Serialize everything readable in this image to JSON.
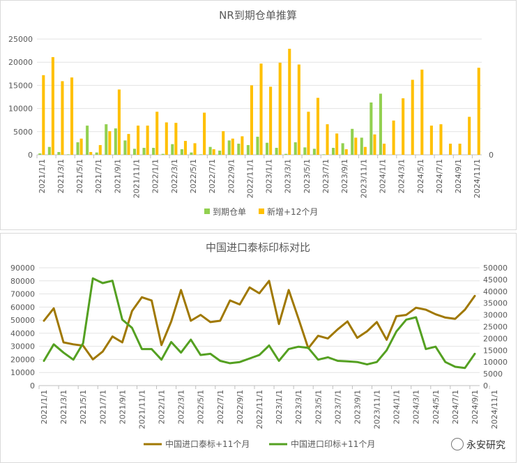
{
  "watermark": "永安研究",
  "chart_data": [
    {
      "type": "bar",
      "title": "NR到期仓单推算",
      "xlabel": "",
      "ylabel": "",
      "ylim": [
        0,
        25000
      ],
      "y_ticks": [
        0,
        5000,
        10000,
        15000,
        20000,
        25000
      ],
      "right_axis_ticks": [
        "0"
      ],
      "grid": true,
      "legend_position": "bottom",
      "x_tick_labels": [
        "2021/1/1",
        "2021/3/1",
        "2021/5/1",
        "2021/7/1",
        "2021/9/1",
        "2021/11/1",
        "2022/1/1",
        "2022/3/1",
        "2022/5/1",
        "2022/7/1",
        "2022/9/1",
        "2022/11/1",
        "2023/1/1",
        "2023/3/1",
        "2023/5/1",
        "2023/7/1",
        "2023/9/1",
        "2023/11/1",
        "2024/1/1",
        "2024/3/1",
        "2024/5/1",
        "2024/7/1",
        "2024/9/1",
        "2024/11/1"
      ],
      "series": [
        {
          "name": "到期仓单",
          "color": "#92d050",
          "values": [
            300,
            1700,
            600,
            100,
            2700,
            6300,
            500,
            6600,
            5700,
            3100,
            1300,
            1500,
            1500,
            200,
            2300,
            1200,
            500,
            100,
            1700,
            900,
            3100,
            2400,
            2100,
            3900,
            2600,
            1500,
            200,
            2700,
            1600,
            1300,
            100,
            1500,
            2500,
            5600,
            3700,
            11300,
            13200,
            0,
            0,
            0,
            0,
            0,
            0,
            0,
            0,
            0,
            0
          ]
        },
        {
          "name": "新增+12个月",
          "color": "#ffc000",
          "values": [
            17200,
            21100,
            15900,
            16700,
            3500,
            600,
            2100,
            5100,
            14100,
            4500,
            6300,
            6300,
            9300,
            7000,
            6900,
            3000,
            2500,
            9100,
            1200,
            5100,
            3500,
            4000,
            15000,
            19700,
            14700,
            19900,
            22900,
            19500,
            9300,
            12300,
            6600,
            4600,
            1200,
            3700,
            1700,
            4400,
            2400,
            7400,
            12200,
            16200,
            18400,
            6300,
            6600,
            2400,
            2400,
            8200,
            18800
          ]
        }
      ]
    },
    {
      "type": "line",
      "title": "中国进口泰标印标对比",
      "xlabel": "",
      "ylabel": "",
      "ylim": [
        0,
        90000
      ],
      "y_ticks": [
        0,
        10000,
        20000,
        30000,
        40000,
        50000,
        60000,
        70000,
        80000,
        90000
      ],
      "y2lim": [
        0,
        50000
      ],
      "y2_ticks": [
        0,
        5000,
        10000,
        15000,
        20000,
        25000,
        30000,
        35000,
        40000,
        45000,
        50000
      ],
      "grid": true,
      "legend_position": "bottom",
      "x_tick_labels": [
        "2021/1/1",
        "2021/3/1",
        "2021/5/1",
        "2021/7/1",
        "2021/9/1",
        "2021/11/1",
        "2022/1/1",
        "2022/3/1",
        "2022/5/1",
        "2022/7/1",
        "2022/9/1",
        "2022/11/1",
        "2023/1/1",
        "2023/3/1",
        "2023/5/1",
        "2023/7/1",
        "2023/9/1",
        "2023/11/1",
        "2024/1/1",
        "2024/3/1",
        "2024/5/1",
        "2024/7/1",
        "2024/9/1",
        "2024/11/1"
      ],
      "series": [
        {
          "name": "中国进口泰标+11个月",
          "color": "#a07800",
          "axis": "left",
          "values": [
            49500,
            59000,
            33000,
            31500,
            30500,
            20000,
            26000,
            37500,
            33000,
            57000,
            67500,
            65000,
            31000,
            49000,
            73000,
            49500,
            54000,
            48500,
            49500,
            65000,
            62000,
            75000,
            70500,
            80000,
            47000,
            73000,
            51000,
            28500,
            38000,
            36000,
            43000,
            49000,
            36500,
            41500,
            48500,
            35000,
            53000,
            54000,
            59500,
            58000,
            54500,
            52000,
            51000,
            58000,
            68500
          ]
        },
        {
          "name": "中国进口印标+11个月",
          "color": "#54a021",
          "axis": "right",
          "values": [
            10500,
            17500,
            14000,
            11000,
            18000,
            45500,
            43500,
            44500,
            28000,
            24500,
            15500,
            15500,
            11000,
            18500,
            14000,
            19500,
            13000,
            13500,
            10500,
            9500,
            10000,
            11500,
            13000,
            17000,
            10500,
            15500,
            16500,
            16000,
            11000,
            12000,
            10500,
            10300,
            10000,
            9000,
            10000,
            15000,
            23000,
            28000,
            29000,
            15500,
            16500,
            10000,
            8000,
            7500,
            13500
          ]
        }
      ]
    }
  ]
}
